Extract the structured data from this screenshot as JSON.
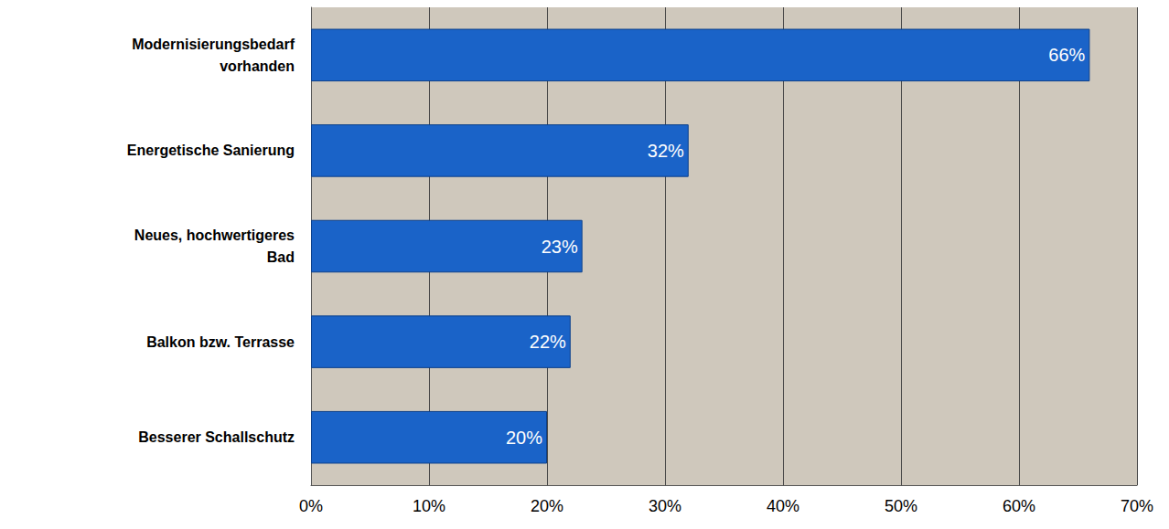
{
  "chart_data": {
    "type": "bar",
    "orientation": "horizontal",
    "categories": [
      "Modernisierungsbedarf vorhanden",
      "Energetische Sanierung",
      "Neues, hochwertigeres Bad",
      "Balkon bzw. Terrasse",
      "Besserer Schallschutz"
    ],
    "values": [
      66,
      32,
      23,
      22,
      20
    ],
    "value_labels": [
      "66%",
      "32%",
      "23%",
      "22%",
      "20%"
    ],
    "color": "#1a63c8",
    "xlim": [
      0,
      70
    ],
    "xticks": [
      {
        "value": 0,
        "label": "0%"
      },
      {
        "value": 10,
        "label": "10%"
      },
      {
        "value": 20,
        "label": "20%"
      },
      {
        "value": 30,
        "label": "30%"
      },
      {
        "value": 40,
        "label": "40%"
      },
      {
        "value": 50,
        "label": "50%"
      },
      {
        "value": 60,
        "label": "60%"
      },
      {
        "value": 70,
        "label": "70%"
      }
    ],
    "grid": true,
    "data_labels": true
  }
}
